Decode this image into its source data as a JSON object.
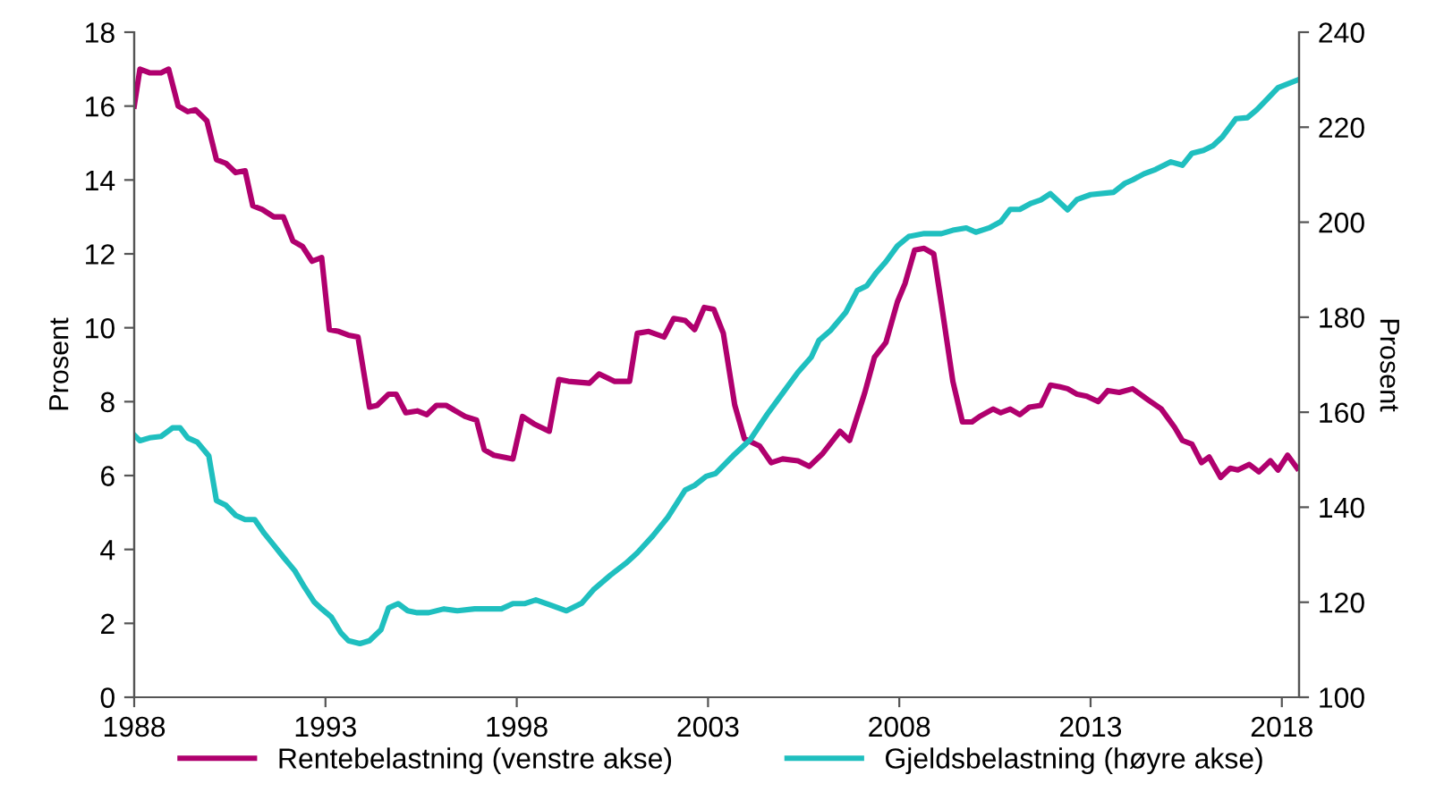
{
  "chart_data": {
    "type": "line",
    "ylabel": "Prosent",
    "y2label": "Prosent",
    "xlim": [
      1988,
      2018.45
    ],
    "xticks": [
      1988,
      1993,
      1998,
      2003,
      2008,
      2013,
      2018
    ],
    "ylim": [
      0,
      18
    ],
    "yticks": [
      0,
      2,
      4,
      6,
      8,
      10,
      12,
      14,
      16,
      18
    ],
    "y2lim": [
      100,
      240
    ],
    "y2ticks": [
      100,
      120,
      140,
      160,
      180,
      200,
      220,
      240
    ],
    "grid": false,
    "legend": "bottom",
    "marker": "none",
    "line_style": "solid",
    "series": [
      {
        "name": "Rentebelastning (venstre akse)",
        "color": "#b0006e",
        "x": [
          1988.0,
          1988.15,
          1988.4,
          1988.7,
          1988.9,
          1989.15,
          1989.4,
          1989.6,
          1989.9,
          1990.15,
          1990.4,
          1990.65,
          1990.9,
          1991.1,
          1991.35,
          1991.65,
          1991.9,
          1992.15,
          1992.4,
          1992.65,
          1992.9,
          1993.1,
          1993.35,
          1993.6,
          1993.85,
          1994.15,
          1994.35,
          1994.65,
          1994.85,
          1995.1,
          1995.4,
          1995.65,
          1995.9,
          1996.15,
          1996.65,
          1996.95,
          1997.15,
          1997.4,
          1997.9,
          1998.15,
          1998.45,
          1998.85,
          1999.1,
          1999.35,
          1999.9,
          2000.15,
          2000.55,
          2000.95,
          2001.15,
          2001.45,
          2001.85,
          2002.1,
          2002.4,
          2002.65,
          2002.9,
          2003.15,
          2003.4,
          2003.7,
          2003.95,
          2004.35,
          2004.65,
          2004.95,
          2005.35,
          2005.65,
          2006.0,
          2006.45,
          2006.7,
          2007.1,
          2007.35,
          2007.65,
          2007.95,
          2008.15,
          2008.4,
          2008.65,
          2008.9,
          2009.1,
          2009.4,
          2009.65,
          2009.9,
          2010.1,
          2010.45,
          2010.65,
          2010.9,
          2011.15,
          2011.4,
          2011.7,
          2011.95,
          2012.2,
          2012.4,
          2012.65,
          2012.9,
          2013.2,
          2013.45,
          2013.75,
          2014.1,
          2014.5,
          2014.85,
          2015.2,
          2015.4,
          2015.65,
          2015.9,
          2016.1,
          2016.4,
          2016.65,
          2016.85,
          2017.15,
          2017.4,
          2017.7,
          2017.9,
          2018.15,
          2018.4
        ],
        "values": [
          16.0,
          17.0,
          16.9,
          16.9,
          17.0,
          16.0,
          15.85,
          15.9,
          15.6,
          14.55,
          14.45,
          14.2,
          14.25,
          13.3,
          13.2,
          13.0,
          13.0,
          12.35,
          12.2,
          11.8,
          11.9,
          9.95,
          9.9,
          9.8,
          9.75,
          7.85,
          7.9,
          8.2,
          8.2,
          7.7,
          7.75,
          7.65,
          7.9,
          7.9,
          7.6,
          7.5,
          6.7,
          6.55,
          6.45,
          7.6,
          7.4,
          7.2,
          8.6,
          8.55,
          8.5,
          8.75,
          8.55,
          8.55,
          9.85,
          9.9,
          9.75,
          10.25,
          10.2,
          9.95,
          10.55,
          10.5,
          9.85,
          7.9,
          7.0,
          6.8,
          6.35,
          6.45,
          6.4,
          6.25,
          6.6,
          7.2,
          6.95,
          8.25,
          9.2,
          9.6,
          10.7,
          11.2,
          12.1,
          12.15,
          12.0,
          10.65,
          8.55,
          7.45,
          7.45,
          7.6,
          7.8,
          7.7,
          7.8,
          7.65,
          7.85,
          7.9,
          8.45,
          8.4,
          8.35,
          8.2,
          8.15,
          8.0,
          8.3,
          8.25,
          8.35,
          8.05,
          7.8,
          7.3,
          6.95,
          6.85,
          6.35,
          6.5,
          5.95,
          6.2,
          6.15,
          6.3,
          6.1,
          6.4,
          6.15,
          6.55,
          6.2
        ]
      },
      {
        "name": "Gjeldsbelastning (høyre akse)",
        "color": "#1fbfbf",
        "axis": "y2",
        "x": [
          1988.0,
          1988.15,
          1988.4,
          1988.7,
          1989.0,
          1989.2,
          1989.4,
          1989.65,
          1989.95,
          1990.15,
          1990.4,
          1990.65,
          1990.9,
          1991.15,
          1991.4,
          1991.65,
          1991.9,
          1992.2,
          1992.45,
          1992.7,
          1992.9,
          1993.15,
          1993.4,
          1993.6,
          1993.9,
          1994.15,
          1994.45,
          1994.65,
          1994.9,
          1995.15,
          1995.4,
          1995.7,
          1996.1,
          1996.45,
          1996.9,
          1997.6,
          1997.9,
          1998.2,
          1998.5,
          1998.85,
          1999.3,
          1999.7,
          2000.0,
          2000.45,
          2000.85,
          2001.15,
          2001.55,
          2001.95,
          2002.4,
          2002.65,
          2002.95,
          2003.2,
          2003.65,
          2004.1,
          2004.55,
          2004.95,
          2005.35,
          2005.7,
          2005.9,
          2006.2,
          2006.6,
          2006.9,
          2007.15,
          2007.4,
          2007.65,
          2007.95,
          2008.25,
          2008.65,
          2009.1,
          2009.4,
          2009.75,
          2010.0,
          2010.35,
          2010.65,
          2010.9,
          2011.15,
          2011.45,
          2011.7,
          2011.95,
          2012.4,
          2012.65,
          2013.0,
          2013.6,
          2013.9,
          2014.1,
          2014.4,
          2014.7,
          2015.1,
          2015.4,
          2015.65,
          2015.95,
          2016.2,
          2016.45,
          2016.8,
          2017.1,
          2017.35,
          2017.65,
          2017.9,
          2018.4
        ],
        "values": [
          155.2,
          154.0,
          154.6,
          154.9,
          156.7,
          156.7,
          154.6,
          153.7,
          150.8,
          141.4,
          140.4,
          138.3,
          137.4,
          137.4,
          134.5,
          132.0,
          129.5,
          126.6,
          123.2,
          120.1,
          118.6,
          116.9,
          113.6,
          111.9,
          111.3,
          111.9,
          114.2,
          118.8,
          119.7,
          118.2,
          117.8,
          117.8,
          118.6,
          118.2,
          118.6,
          118.6,
          119.7,
          119.7,
          120.5,
          119.5,
          118.2,
          119.8,
          122.6,
          125.7,
          128.2,
          130.4,
          133.9,
          137.9,
          143.6,
          144.6,
          146.5,
          147.1,
          150.8,
          154.2,
          159.6,
          164.0,
          168.4,
          171.6,
          175.1,
          177.2,
          181.0,
          185.6,
          186.6,
          189.4,
          191.7,
          195.0,
          197.0,
          197.6,
          197.6,
          198.3,
          198.8,
          197.9,
          198.8,
          200.1,
          202.7,
          202.7,
          204.0,
          204.7,
          206.0,
          202.6,
          204.8,
          205.8,
          206.3,
          208.2,
          208.9,
          210.2,
          211.1,
          212.7,
          212.0,
          214.5,
          215.1,
          216.1,
          218.0,
          221.8,
          222.0,
          223.7,
          226.2,
          228.3,
          229.9
        ]
      }
    ]
  }
}
